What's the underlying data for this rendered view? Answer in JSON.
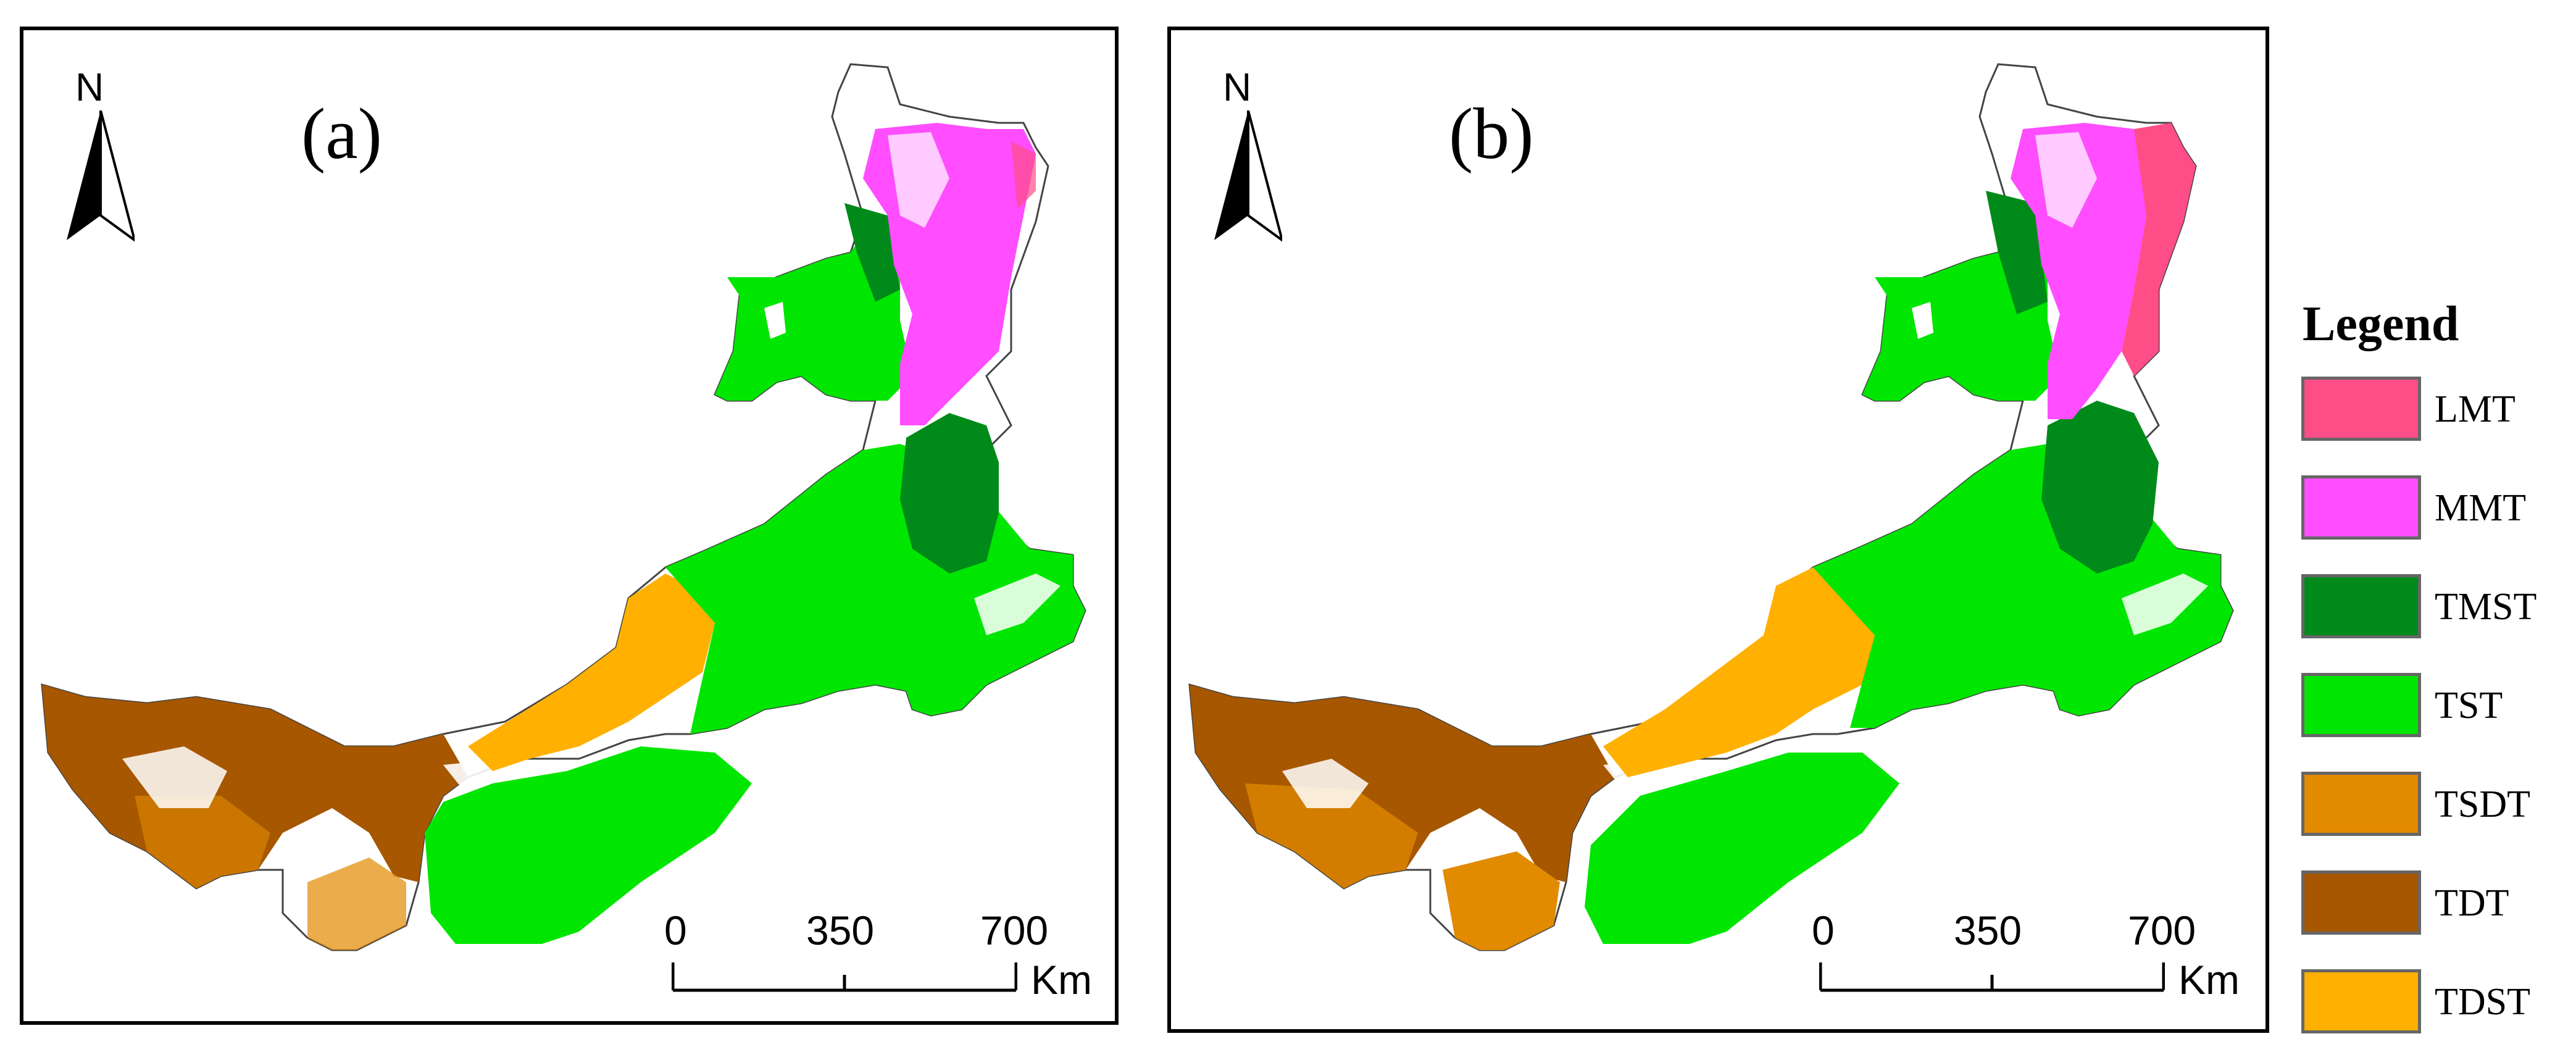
{
  "panels": [
    {
      "label": "(a)"
    },
    {
      "label": "(b)"
    }
  ],
  "north_arrow": {
    "letter": "N",
    "icon": "north-arrow-icon"
  },
  "scale_bar": {
    "ticks": [
      "0",
      "350",
      "700"
    ],
    "unit": "Km"
  },
  "legend": {
    "title": "Legend",
    "items": [
      {
        "label": "LMT",
        "color": "#FF4D88"
      },
      {
        "label": "MMT",
        "color": "#FF4DFF"
      },
      {
        "label": "TMST",
        "color": "#008A1A"
      },
      {
        "label": "TST",
        "color": "#00E600"
      },
      {
        "label": "TSDT",
        "color": "#E28A00"
      },
      {
        "label": "TDT",
        "color": "#A65700"
      },
      {
        "label": "TDST",
        "color": "#FFB000"
      }
    ]
  }
}
